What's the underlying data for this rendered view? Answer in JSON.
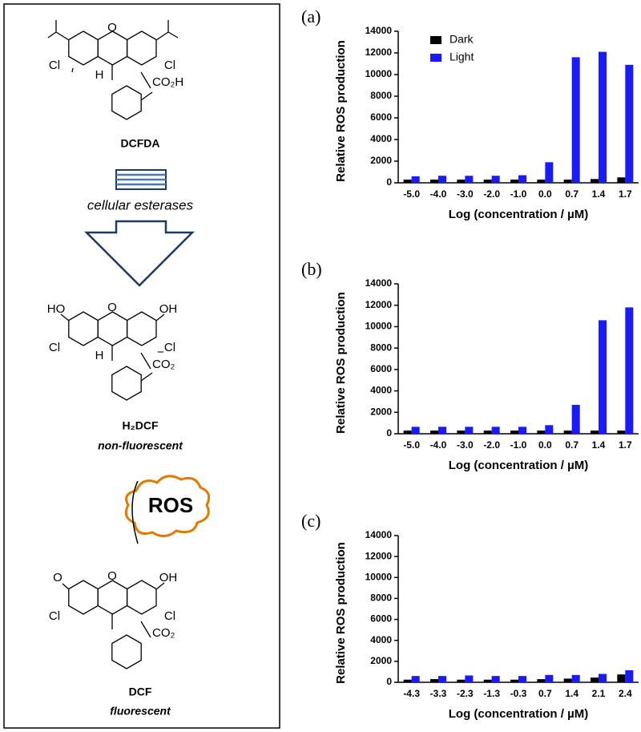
{
  "diagram": {
    "molecules": [
      {
        "name": "DCFDA",
        "atoms": [
          "O",
          "Cl",
          "Cl",
          "H",
          "CO₂H"
        ]
      },
      {
        "name": "H₂DCF",
        "note": "non-fluorescent",
        "atoms": [
          "HO",
          "O",
          "OH",
          "Cl",
          "Cl",
          "H",
          "CO₂",
          "−"
        ]
      },
      {
        "name": "DCF",
        "note": "fluorescent",
        "atoms": [
          "O",
          "O",
          "OH",
          "Cl",
          "Cl",
          "CO₂"
        ]
      }
    ],
    "enzyme": "cellular esterases",
    "oxidant": "ROS"
  },
  "chart_data": [
    {
      "type": "bar",
      "label": "(a)",
      "ylabel": "Relative ROS production",
      "xlabel": "Log (concentration / µM)",
      "categories": [
        "-5.0",
        "-4.0",
        "-3.0",
        "-2.0",
        "-1.0",
        "0.0",
        "0.7",
        "1.4",
        "1.7"
      ],
      "series": [
        {
          "name": "Dark",
          "color": "#000000",
          "values": [
            300,
            300,
            300,
            300,
            300,
            300,
            300,
            350,
            500
          ]
        },
        {
          "name": "Light",
          "color": "#1a1aff",
          "values": [
            600,
            650,
            650,
            650,
            700,
            1900,
            11600,
            12100,
            10900
          ]
        }
      ],
      "ylim": [
        0,
        14000
      ],
      "yticks": [
        0,
        2000,
        4000,
        6000,
        8000,
        10000,
        12000,
        14000
      ],
      "legend": "upper left"
    },
    {
      "type": "bar",
      "label": "(b)",
      "ylabel": "Relative ROS production",
      "xlabel": "Log (concentration / µM)",
      "categories": [
        "-5.0",
        "-4.0",
        "-3.0",
        "-2.0",
        "-1.0",
        "0.0",
        "0.7",
        "1.4",
        "1.7"
      ],
      "series": [
        {
          "color": "#000000",
          "values": [
            300,
            300,
            300,
            300,
            300,
            300,
            300,
            300,
            300
          ]
        },
        {
          "color": "#1a1aff",
          "values": [
            650,
            650,
            650,
            650,
            650,
            800,
            2700,
            10600,
            11800
          ]
        }
      ],
      "ylim": [
        0,
        14000
      ],
      "yticks": [
        0,
        2000,
        4000,
        6000,
        8000,
        10000,
        12000,
        14000
      ]
    },
    {
      "type": "bar",
      "label": "(c)",
      "ylabel": "Relative ROS production",
      "xlabel": "Log (concentration / µM)",
      "categories": [
        "-4.3",
        "-3.3",
        "-2.3",
        "-1.3",
        "-0.3",
        "0.7",
        "1.4",
        "2.1",
        "2.4"
      ],
      "series": [
        {
          "color": "#000000",
          "values": [
            250,
            300,
            250,
            250,
            250,
            300,
            350,
            450,
            750
          ]
        },
        {
          "color": "#1a1aff",
          "values": [
            600,
            600,
            650,
            600,
            600,
            700,
            700,
            800,
            1150
          ]
        }
      ],
      "ylim": [
        0,
        14000
      ],
      "yticks": [
        0,
        2000,
        4000,
        6000,
        8000,
        10000,
        12000,
        14000
      ]
    }
  ]
}
